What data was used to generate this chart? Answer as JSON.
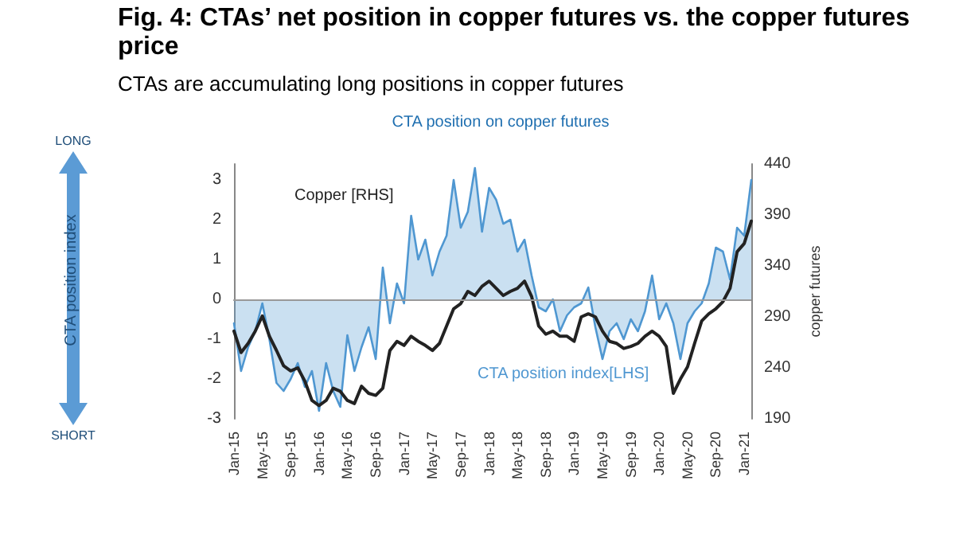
{
  "chart_data": {
    "type": "line",
    "title": "CTA position on copper futures",
    "subtitle": "CTAs are accumulating long positions in copper futures",
    "annotations": [
      "Fig. 4: CTAs’ net position in copper futures vs. the copper futures price",
      "LONG",
      "SHORT",
      "CTA position index"
    ],
    "y2label": "copper futures",
    "categories": [
      "Jan-15",
      null,
      null,
      null,
      "May-15",
      null,
      null,
      null,
      "Sep-15",
      null,
      null,
      null,
      "Jan-16",
      null,
      null,
      null,
      "May-16",
      null,
      null,
      null,
      "Sep-16",
      null,
      null,
      null,
      "Jan-17",
      null,
      null,
      null,
      "May-17",
      null,
      null,
      null,
      "Sep-17",
      null,
      null,
      null,
      "Jan-18",
      null,
      null,
      null,
      "May-18",
      null,
      null,
      null,
      "Sep-18",
      null,
      null,
      null,
      "Jan-19",
      null,
      null,
      null,
      "May-19",
      null,
      null,
      null,
      "Sep-19",
      null,
      null,
      null,
      "Jan-20",
      null,
      null,
      null,
      "May-20",
      null,
      null,
      null,
      "Sep-20",
      null,
      null,
      null,
      "Jan-21",
      null
    ],
    "series": [
      {
        "name": "CTA position index[LHS]",
        "type": "area",
        "color": "#4f97d1",
        "values": [
          -0.6,
          -1.8,
          -1.2,
          -0.8,
          -0.1,
          -1.0,
          -2.1,
          -2.3,
          -2.0,
          -1.6,
          -2.2,
          -1.8,
          -2.8,
          -1.6,
          -2.3,
          -2.7,
          -0.9,
          -1.8,
          -1.2,
          -0.7,
          -1.5,
          0.8,
          -0.6,
          0.4,
          -0.1,
          2.1,
          1.0,
          1.5,
          0.6,
          1.2,
          1.6,
          3.0,
          1.8,
          2.2,
          3.3,
          1.7,
          2.8,
          2.5,
          1.9,
          2.0,
          1.2,
          1.5,
          0.6,
          -0.2,
          -0.3,
          0.0,
          -0.8,
          -0.4,
          -0.2,
          -0.1,
          0.3,
          -0.7,
          -1.5,
          -0.8,
          -0.6,
          -1.0,
          -0.5,
          -0.8,
          -0.3,
          0.6,
          -0.5,
          -0.1,
          -0.6,
          -1.5,
          -0.6,
          -0.3,
          -0.1,
          0.4,
          1.3,
          1.2,
          0.5,
          1.8,
          1.6,
          3.0
        ]
      },
      {
        "name": "Copper [RHS]",
        "type": "line",
        "axis": "y2",
        "color": "#222222",
        "values": [
          276,
          255,
          264,
          276,
          291,
          271,
          257,
          242,
          237,
          240,
          227,
          208,
          203,
          208,
          220,
          217,
          208,
          205,
          222,
          215,
          213,
          220,
          257,
          266,
          262,
          271,
          266,
          262,
          257,
          264,
          281,
          298,
          303,
          315,
          311,
          320,
          325,
          318,
          311,
          315,
          318,
          325,
          310,
          281,
          273,
          276,
          271,
          271,
          266,
          290,
          293,
          290,
          276,
          266,
          264,
          259,
          261,
          264,
          271,
          276,
          271,
          261,
          215,
          229,
          241,
          264,
          286,
          293,
          298,
          305,
          318,
          354,
          362,
          384
        ]
      }
    ],
    "ylim": [
      -3,
      3.4
    ],
    "yticks": [
      -3,
      -2,
      -1,
      0,
      1,
      2,
      3
    ],
    "y2lim": [
      190,
      440
    ],
    "y2ticks": [
      190,
      240,
      290,
      340,
      390,
      440
    ],
    "ref_lines": [
      {
        "axis": "y",
        "value": 0,
        "color": "#999999"
      }
    ],
    "grid": false,
    "legend": false,
    "marker": "none",
    "line_style": "solid"
  }
}
